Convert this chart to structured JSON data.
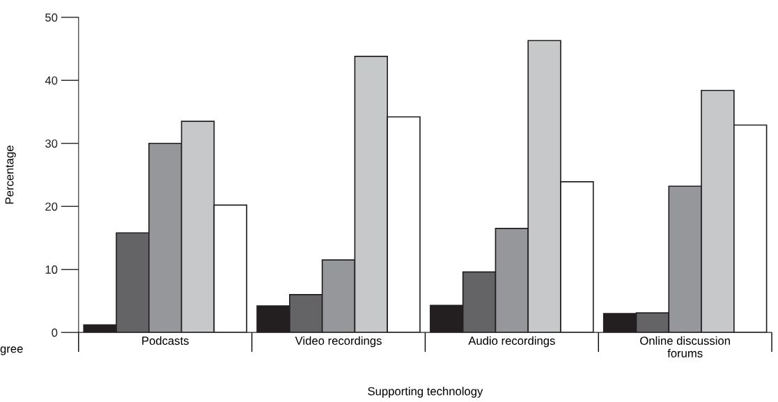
{
  "chart_data": {
    "type": "bar",
    "xlabel": "Supporting technology",
    "ylabel": "Percentage",
    "categories": [
      "Podcasts",
      "Video recordings",
      "Audio recordings",
      "Online discussion\nforums"
    ],
    "series": [
      {
        "color": "#231f20",
        "values": [
          1.2,
          4.2,
          4.3,
          3.0
        ]
      },
      {
        "color": "#646466",
        "values": [
          15.8,
          6.0,
          9.6,
          3.1
        ]
      },
      {
        "color": "#96979a",
        "values": [
          30.0,
          11.5,
          16.5,
          23.2
        ]
      },
      {
        "color": "#c7c8ca",
        "values": [
          33.5,
          43.8,
          46.3,
          38.4
        ]
      },
      {
        "color": "#ffffff",
        "values": [
          20.2,
          34.2,
          23.9,
          32.9
        ]
      }
    ],
    "ylim": [
      0,
      50
    ],
    "yticks": [
      0,
      10,
      20,
      30,
      40,
      50
    ],
    "grid": false,
    "legend": false,
    "annotations": [
      "gree"
    ]
  }
}
